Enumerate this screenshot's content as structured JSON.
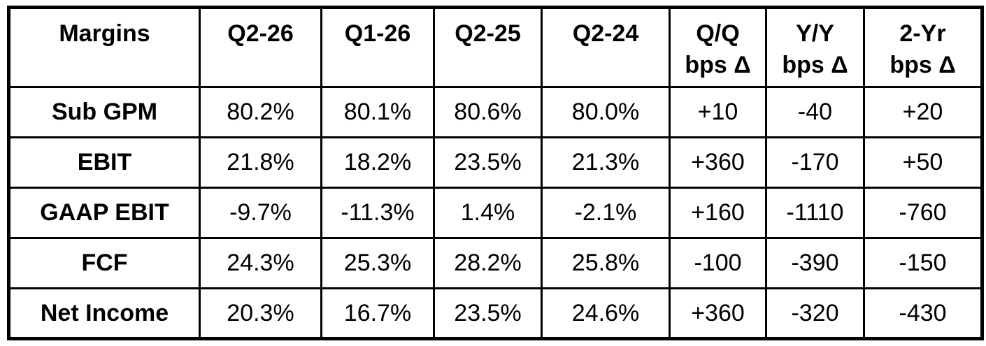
{
  "chart_data": {
    "type": "table",
    "title": "Margins",
    "header": [
      {
        "id": "margins",
        "lines": [
          "Margins"
        ]
      },
      {
        "id": "q2-26",
        "lines": [
          "Q2-26"
        ]
      },
      {
        "id": "q1-26",
        "lines": [
          "Q1-26"
        ]
      },
      {
        "id": "q2-25",
        "lines": [
          "Q2-25"
        ]
      },
      {
        "id": "q2-24",
        "lines": [
          "Q2-24"
        ]
      },
      {
        "id": "qq-bps-delta",
        "lines": [
          "Q/Q",
          "bps Δ"
        ]
      },
      {
        "id": "yy-bps-delta",
        "lines": [
          "Y/Y",
          "bps Δ"
        ]
      },
      {
        "id": "2yr-bps-delta",
        "lines": [
          "2-Yr",
          "bps Δ"
        ]
      }
    ],
    "rows": [
      {
        "label": "Sub GPM",
        "values": [
          "80.2%",
          "80.1%",
          "80.6%",
          "80.0%",
          "+10",
          "-40",
          "+20"
        ]
      },
      {
        "label": "EBIT",
        "values": [
          "21.8%",
          "18.2%",
          "23.5%",
          "21.3%",
          "+360",
          "-170",
          "+50"
        ]
      },
      {
        "label": "GAAP EBIT",
        "values": [
          "-9.7%",
          "-11.3%",
          "1.4%",
          "-2.1%",
          "+160",
          "-1110",
          "-760"
        ]
      },
      {
        "label": "FCF",
        "values": [
          "24.3%",
          "25.3%",
          "28.2%",
          "25.8%",
          "-100",
          "-390",
          "-150"
        ]
      },
      {
        "label": "Net Income",
        "values": [
          "20.3%",
          "16.7%",
          "23.5%",
          "24.6%",
          "+360",
          "-320",
          "-430"
        ]
      }
    ],
    "colors": {
      "text": "#000000",
      "background": "#ffffff",
      "border": "#000000"
    }
  }
}
